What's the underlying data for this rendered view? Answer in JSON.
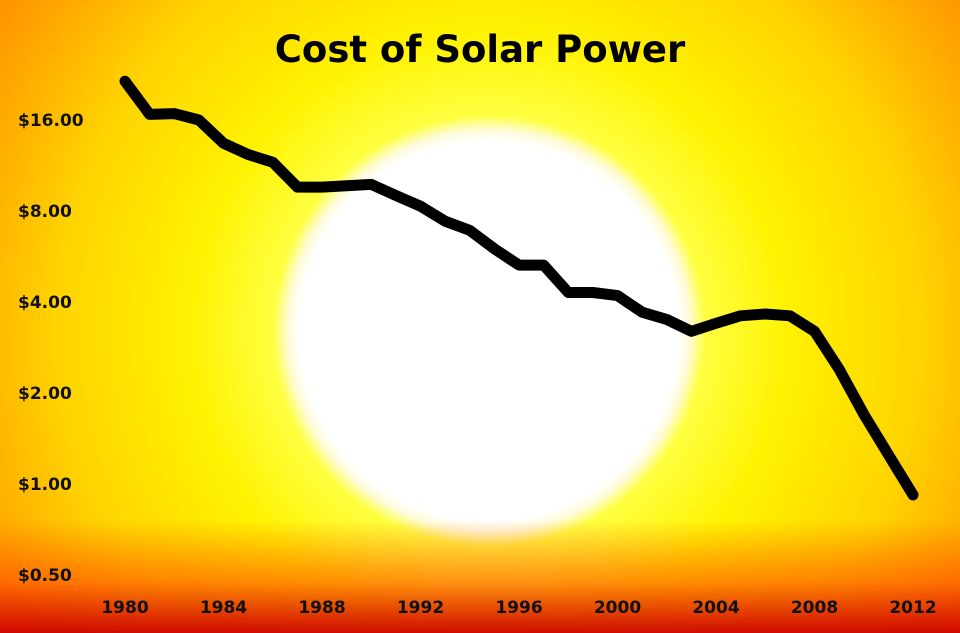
{
  "chart_data": {
    "type": "line",
    "title": "Cost of Solar Power",
    "xlabel": "",
    "ylabel": "",
    "y_scale": "log2",
    "ylim": [
      0.5,
      22
    ],
    "xlim": [
      1980,
      2012
    ],
    "grid": false,
    "legend": "none",
    "colors": {
      "line": "#000000",
      "text": "#111111",
      "sun_core": "#ffffff",
      "sun_glow": "#ffff00"
    },
    "y_ticks": [
      {
        "value": 16,
        "label": "$16.00"
      },
      {
        "value": 8,
        "label": "$8.00"
      },
      {
        "value": 4,
        "label": "$4.00"
      },
      {
        "value": 2,
        "label": "$2.00"
      },
      {
        "value": 1,
        "label": "$1.00"
      },
      {
        "value": 0.5,
        "label": "$0.50"
      }
    ],
    "x_ticks": [
      {
        "value": 1980,
        "label": "1980"
      },
      {
        "value": 1984,
        "label": "1984"
      },
      {
        "value": 1988,
        "label": "1988"
      },
      {
        "value": 1992,
        "label": "1992"
      },
      {
        "value": 1996,
        "label": "1996"
      },
      {
        "value": 2000,
        "label": "2000"
      },
      {
        "value": 2004,
        "label": "2004"
      },
      {
        "value": 2008,
        "label": "2008"
      },
      {
        "value": 2012,
        "label": "2012"
      }
    ],
    "series": [
      {
        "x": [
          1980,
          1981,
          1982,
          1983,
          1984,
          1985,
          1986,
          1987,
          1988,
          1989,
          1990,
          1991,
          1992,
          1993,
          1994,
          1995,
          1996,
          1997,
          1998,
          1999,
          2000,
          2001,
          2002,
          2003,
          2004,
          2005,
          2006,
          2007,
          2008,
          2009,
          2010,
          2011,
          2012
        ],
        "values": [
          21.5,
          16.7,
          16.8,
          16.0,
          13.4,
          12.3,
          11.6,
          9.6,
          9.6,
          9.7,
          9.8,
          9.0,
          8.3,
          7.4,
          6.9,
          6.0,
          5.3,
          5.3,
          4.3,
          4.3,
          4.2,
          3.7,
          3.5,
          3.2,
          3.4,
          3.6,
          3.65,
          3.6,
          3.2,
          2.4,
          1.7,
          1.25,
          0.92
        ]
      }
    ]
  }
}
